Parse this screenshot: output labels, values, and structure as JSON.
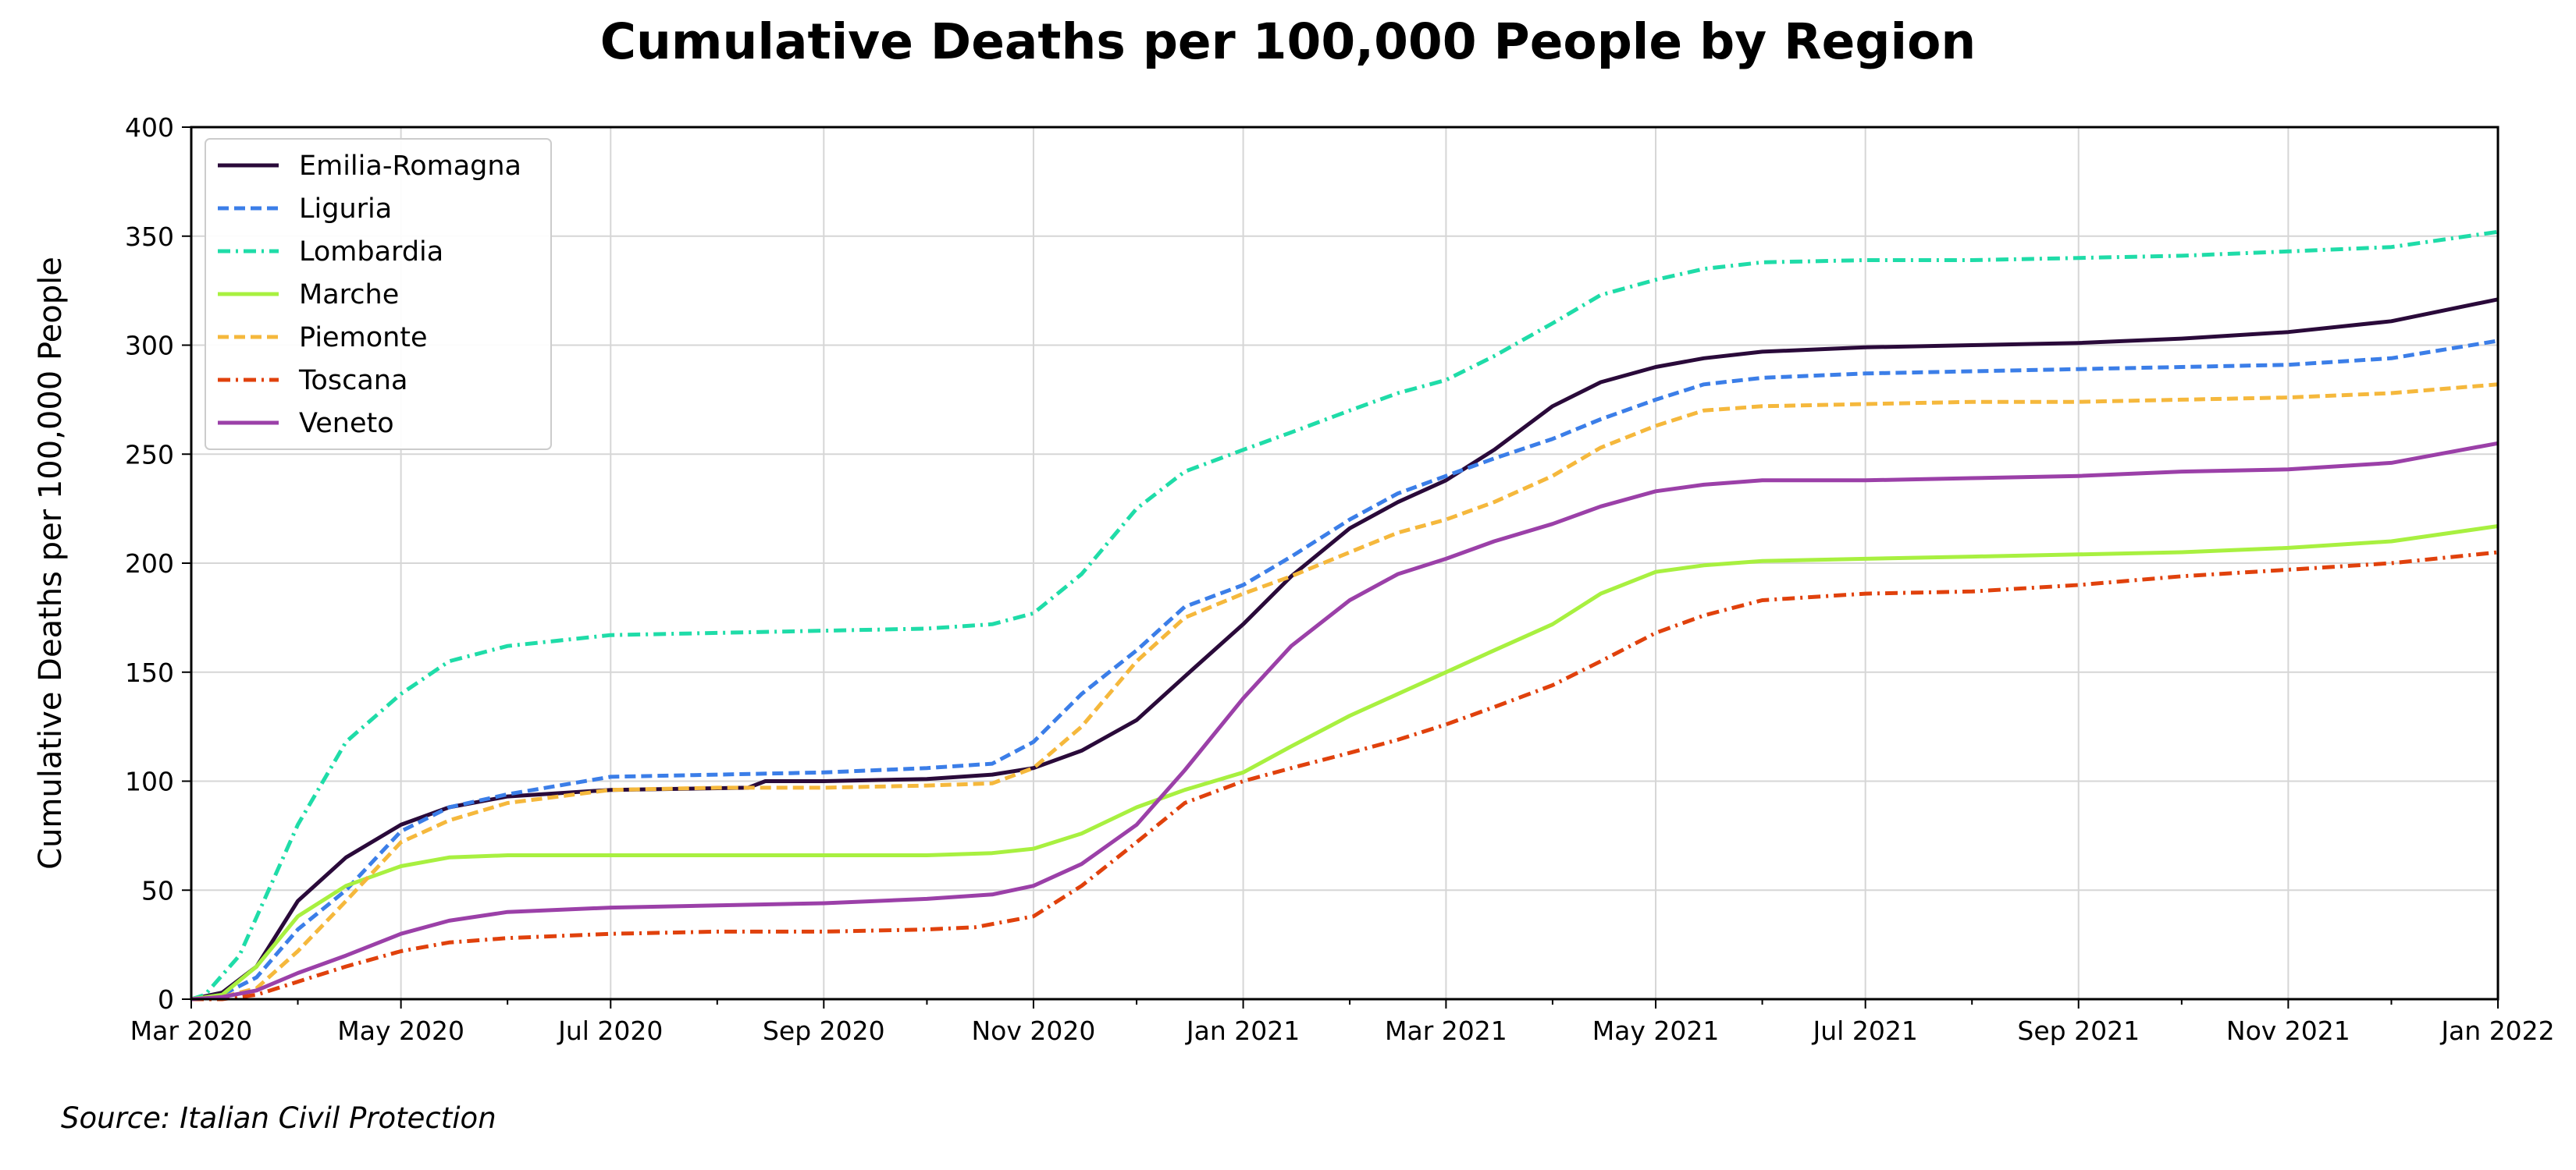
{
  "chart_data": {
    "type": "line",
    "title": "Cumulative Deaths per 100,000 People by Region",
    "ylabel": "Cumulative Deaths per 100,000 People",
    "xlabel": "",
    "source": "Source: Italian Civil Protection",
    "x_range": [
      "2020-03-01",
      "2022-01-01"
    ],
    "ylim": [
      0,
      400
    ],
    "y_ticks": [
      0,
      50,
      100,
      150,
      200,
      250,
      300,
      350,
      400
    ],
    "x_ticks": [
      {
        "date": "2020-03-01",
        "label": "Mar 2020"
      },
      {
        "date": "2020-05-01",
        "label": "May 2020"
      },
      {
        "date": "2020-07-01",
        "label": "Jul 2020"
      },
      {
        "date": "2020-09-01",
        "label": "Sep 2020"
      },
      {
        "date": "2020-11-01",
        "label": "Nov 2020"
      },
      {
        "date": "2021-01-01",
        "label": "Jan 2021"
      },
      {
        "date": "2021-03-01",
        "label": "Mar 2021"
      },
      {
        "date": "2021-05-01",
        "label": "May 2021"
      },
      {
        "date": "2021-07-01",
        "label": "Jul 2021"
      },
      {
        "date": "2021-09-01",
        "label": "Sep 2021"
      },
      {
        "date": "2021-11-01",
        "label": "Nov 2021"
      },
      {
        "date": "2022-01-01",
        "label": "Jan 2022"
      }
    ],
    "minor_x_ticks": [
      "2020-04-01",
      "2020-06-01",
      "2020-08-01",
      "2020-10-01",
      "2020-12-01",
      "2021-02-01",
      "2021-04-01",
      "2021-06-01",
      "2021-08-01",
      "2021-10-01",
      "2021-12-01"
    ],
    "grid": true,
    "legend_position": "top-left",
    "series": [
      {
        "name": "Emilia-Romagna",
        "color": "#2a0a3a",
        "dash": "solid",
        "points": [
          [
            "2020-03-01",
            0
          ],
          [
            "2020-03-10",
            3
          ],
          [
            "2020-03-20",
            15
          ],
          [
            "2020-04-01",
            45
          ],
          [
            "2020-04-15",
            65
          ],
          [
            "2020-05-01",
            80
          ],
          [
            "2020-05-15",
            88
          ],
          [
            "2020-06-01",
            93
          ],
          [
            "2020-07-01",
            96
          ],
          [
            "2020-08-10",
            97
          ],
          [
            "2020-08-15",
            100
          ],
          [
            "2020-09-01",
            100
          ],
          [
            "2020-10-01",
            101
          ],
          [
            "2020-10-20",
            103
          ],
          [
            "2020-11-01",
            106
          ],
          [
            "2020-11-15",
            114
          ],
          [
            "2020-12-01",
            128
          ],
          [
            "2020-12-15",
            148
          ],
          [
            "2021-01-01",
            172
          ],
          [
            "2021-01-15",
            194
          ],
          [
            "2021-02-01",
            216
          ],
          [
            "2021-02-15",
            228
          ],
          [
            "2021-03-01",
            238
          ],
          [
            "2021-03-15",
            252
          ],
          [
            "2021-04-01",
            272
          ],
          [
            "2021-04-15",
            283
          ],
          [
            "2021-05-01",
            290
          ],
          [
            "2021-05-15",
            294
          ],
          [
            "2021-06-01",
            297
          ],
          [
            "2021-07-01",
            299
          ],
          [
            "2021-08-01",
            300
          ],
          [
            "2021-09-01",
            301
          ],
          [
            "2021-10-01",
            303
          ],
          [
            "2021-11-01",
            306
          ],
          [
            "2021-12-01",
            311
          ],
          [
            "2022-01-01",
            321
          ]
        ]
      },
      {
        "name": "Liguria",
        "color": "#3b7ee8",
        "dash": "dashed",
        "points": [
          [
            "2020-03-01",
            0
          ],
          [
            "2020-03-10",
            2
          ],
          [
            "2020-03-20",
            10
          ],
          [
            "2020-04-01",
            32
          ],
          [
            "2020-04-15",
            50
          ],
          [
            "2020-05-01",
            77
          ],
          [
            "2020-05-15",
            88
          ],
          [
            "2020-06-01",
            94
          ],
          [
            "2020-07-01",
            102
          ],
          [
            "2020-08-01",
            103
          ],
          [
            "2020-09-01",
            104
          ],
          [
            "2020-10-01",
            106
          ],
          [
            "2020-10-20",
            108
          ],
          [
            "2020-11-01",
            118
          ],
          [
            "2020-11-15",
            140
          ],
          [
            "2020-12-01",
            160
          ],
          [
            "2020-12-15",
            180
          ],
          [
            "2021-01-01",
            190
          ],
          [
            "2021-01-15",
            203
          ],
          [
            "2021-02-01",
            220
          ],
          [
            "2021-02-15",
            232
          ],
          [
            "2021-03-01",
            240
          ],
          [
            "2021-03-15",
            248
          ],
          [
            "2021-04-01",
            257
          ],
          [
            "2021-04-15",
            266
          ],
          [
            "2021-05-01",
            275
          ],
          [
            "2021-05-15",
            282
          ],
          [
            "2021-06-01",
            285
          ],
          [
            "2021-07-01",
            287
          ],
          [
            "2021-08-01",
            288
          ],
          [
            "2021-09-01",
            289
          ],
          [
            "2021-10-01",
            290
          ],
          [
            "2021-11-01",
            291
          ],
          [
            "2021-12-01",
            294
          ],
          [
            "2022-01-01",
            302
          ]
        ]
      },
      {
        "name": "Lombardia",
        "color": "#1fdca8",
        "dash": "dashdot",
        "points": [
          [
            "2020-03-01",
            0
          ],
          [
            "2020-03-05",
            2
          ],
          [
            "2020-03-15",
            20
          ],
          [
            "2020-04-01",
            80
          ],
          [
            "2020-04-15",
            118
          ],
          [
            "2020-05-01",
            140
          ],
          [
            "2020-05-15",
            155
          ],
          [
            "2020-06-01",
            162
          ],
          [
            "2020-07-01",
            167
          ],
          [
            "2020-08-01",
            168
          ],
          [
            "2020-09-01",
            169
          ],
          [
            "2020-10-01",
            170
          ],
          [
            "2020-10-20",
            172
          ],
          [
            "2020-11-01",
            177
          ],
          [
            "2020-11-15",
            195
          ],
          [
            "2020-12-01",
            225
          ],
          [
            "2020-12-15",
            242
          ],
          [
            "2021-01-01",
            252
          ],
          [
            "2021-01-15",
            260
          ],
          [
            "2021-02-01",
            270
          ],
          [
            "2021-02-15",
            278
          ],
          [
            "2021-03-01",
            284
          ],
          [
            "2021-03-15",
            295
          ],
          [
            "2021-04-01",
            310
          ],
          [
            "2021-04-15",
            323
          ],
          [
            "2021-05-01",
            330
          ],
          [
            "2021-05-15",
            335
          ],
          [
            "2021-06-01",
            338
          ],
          [
            "2021-07-01",
            339
          ],
          [
            "2021-08-01",
            339
          ],
          [
            "2021-09-01",
            340
          ],
          [
            "2021-10-01",
            341
          ],
          [
            "2021-11-01",
            343
          ],
          [
            "2021-12-01",
            345
          ],
          [
            "2022-01-01",
            352
          ]
        ]
      },
      {
        "name": "Marche",
        "color": "#a8f040",
        "dash": "solid",
        "points": [
          [
            "2020-03-01",
            0
          ],
          [
            "2020-03-10",
            2
          ],
          [
            "2020-03-20",
            15
          ],
          [
            "2020-04-01",
            38
          ],
          [
            "2020-04-15",
            52
          ],
          [
            "2020-05-01",
            61
          ],
          [
            "2020-05-15",
            65
          ],
          [
            "2020-06-01",
            66
          ],
          [
            "2020-07-01",
            66
          ],
          [
            "2020-08-01",
            66
          ],
          [
            "2020-09-01",
            66
          ],
          [
            "2020-10-01",
            66
          ],
          [
            "2020-10-20",
            67
          ],
          [
            "2020-11-01",
            69
          ],
          [
            "2020-11-15",
            76
          ],
          [
            "2020-12-01",
            88
          ],
          [
            "2020-12-15",
            96
          ],
          [
            "2021-01-01",
            104
          ],
          [
            "2021-01-15",
            116
          ],
          [
            "2021-02-01",
            130
          ],
          [
            "2021-02-15",
            140
          ],
          [
            "2021-03-01",
            150
          ],
          [
            "2021-03-15",
            160
          ],
          [
            "2021-04-01",
            172
          ],
          [
            "2021-04-15",
            186
          ],
          [
            "2021-05-01",
            196
          ],
          [
            "2021-05-15",
            199
          ],
          [
            "2021-06-01",
            201
          ],
          [
            "2021-07-01",
            202
          ],
          [
            "2021-08-01",
            203
          ],
          [
            "2021-09-01",
            204
          ],
          [
            "2021-10-01",
            205
          ],
          [
            "2021-11-01",
            207
          ],
          [
            "2021-12-01",
            210
          ],
          [
            "2022-01-01",
            217
          ]
        ]
      },
      {
        "name": "Piemonte",
        "color": "#f5b83c",
        "dash": "dashed",
        "points": [
          [
            "2020-03-01",
            0
          ],
          [
            "2020-03-10",
            1
          ],
          [
            "2020-03-20",
            5
          ],
          [
            "2020-04-01",
            22
          ],
          [
            "2020-04-15",
            45
          ],
          [
            "2020-05-01",
            72
          ],
          [
            "2020-05-15",
            82
          ],
          [
            "2020-06-01",
            90
          ],
          [
            "2020-07-01",
            96
          ],
          [
            "2020-08-01",
            97
          ],
          [
            "2020-09-01",
            97
          ],
          [
            "2020-10-01",
            98
          ],
          [
            "2020-10-20",
            99
          ],
          [
            "2020-11-01",
            106
          ],
          [
            "2020-11-15",
            125
          ],
          [
            "2020-12-01",
            155
          ],
          [
            "2020-12-15",
            175
          ],
          [
            "2021-01-01",
            186
          ],
          [
            "2021-01-15",
            194
          ],
          [
            "2021-02-01",
            205
          ],
          [
            "2021-02-15",
            214
          ],
          [
            "2021-03-01",
            220
          ],
          [
            "2021-03-15",
            228
          ],
          [
            "2021-04-01",
            240
          ],
          [
            "2021-04-15",
            253
          ],
          [
            "2021-05-01",
            263
          ],
          [
            "2021-05-15",
            270
          ],
          [
            "2021-06-01",
            272
          ],
          [
            "2021-07-01",
            273
          ],
          [
            "2021-08-01",
            274
          ],
          [
            "2021-09-01",
            274
          ],
          [
            "2021-10-01",
            275
          ],
          [
            "2021-11-01",
            276
          ],
          [
            "2021-12-01",
            278
          ],
          [
            "2022-01-01",
            282
          ]
        ]
      },
      {
        "name": "Toscana",
        "color": "#e0410c",
        "dash": "dashdot",
        "points": [
          [
            "2020-03-01",
            0
          ],
          [
            "2020-03-10",
            0
          ],
          [
            "2020-03-20",
            2
          ],
          [
            "2020-04-01",
            8
          ],
          [
            "2020-04-15",
            15
          ],
          [
            "2020-05-01",
            22
          ],
          [
            "2020-05-15",
            26
          ],
          [
            "2020-06-01",
            28
          ],
          [
            "2020-07-01",
            30
          ],
          [
            "2020-08-01",
            31
          ],
          [
            "2020-09-01",
            31
          ],
          [
            "2020-10-01",
            32
          ],
          [
            "2020-10-15",
            33
          ],
          [
            "2020-11-01",
            38
          ],
          [
            "2020-11-15",
            52
          ],
          [
            "2020-12-01",
            72
          ],
          [
            "2020-12-15",
            90
          ],
          [
            "2021-01-01",
            100
          ],
          [
            "2021-01-15",
            106
          ],
          [
            "2021-02-01",
            113
          ],
          [
            "2021-02-15",
            119
          ],
          [
            "2021-03-01",
            126
          ],
          [
            "2021-03-15",
            134
          ],
          [
            "2021-04-01",
            144
          ],
          [
            "2021-04-15",
            155
          ],
          [
            "2021-05-01",
            168
          ],
          [
            "2021-05-15",
            176
          ],
          [
            "2021-06-01",
            183
          ],
          [
            "2021-07-01",
            186
          ],
          [
            "2021-08-01",
            187
          ],
          [
            "2021-09-01",
            190
          ],
          [
            "2021-10-01",
            194
          ],
          [
            "2021-11-01",
            197
          ],
          [
            "2021-12-01",
            200
          ],
          [
            "2022-01-01",
            205
          ]
        ]
      },
      {
        "name": "Veneto",
        "color": "#9b40a8",
        "dash": "solid",
        "points": [
          [
            "2020-03-01",
            0
          ],
          [
            "2020-03-10",
            1
          ],
          [
            "2020-03-20",
            4
          ],
          [
            "2020-04-01",
            12
          ],
          [
            "2020-04-15",
            20
          ],
          [
            "2020-05-01",
            30
          ],
          [
            "2020-05-15",
            36
          ],
          [
            "2020-06-01",
            40
          ],
          [
            "2020-07-01",
            42
          ],
          [
            "2020-08-01",
            43
          ],
          [
            "2020-09-01",
            44
          ],
          [
            "2020-10-01",
            46
          ],
          [
            "2020-10-20",
            48
          ],
          [
            "2020-11-01",
            52
          ],
          [
            "2020-11-15",
            62
          ],
          [
            "2020-12-01",
            80
          ],
          [
            "2020-12-15",
            105
          ],
          [
            "2021-01-01",
            138
          ],
          [
            "2021-01-15",
            162
          ],
          [
            "2021-02-01",
            183
          ],
          [
            "2021-02-15",
            195
          ],
          [
            "2021-03-01",
            202
          ],
          [
            "2021-03-15",
            210
          ],
          [
            "2021-04-01",
            218
          ],
          [
            "2021-04-15",
            226
          ],
          [
            "2021-05-01",
            233
          ],
          [
            "2021-05-15",
            236
          ],
          [
            "2021-06-01",
            238
          ],
          [
            "2021-07-01",
            238
          ],
          [
            "2021-08-01",
            239
          ],
          [
            "2021-09-01",
            240
          ],
          [
            "2021-10-01",
            242
          ],
          [
            "2021-11-01",
            243
          ],
          [
            "2021-12-01",
            246
          ],
          [
            "2022-01-01",
            255
          ]
        ]
      }
    ]
  }
}
